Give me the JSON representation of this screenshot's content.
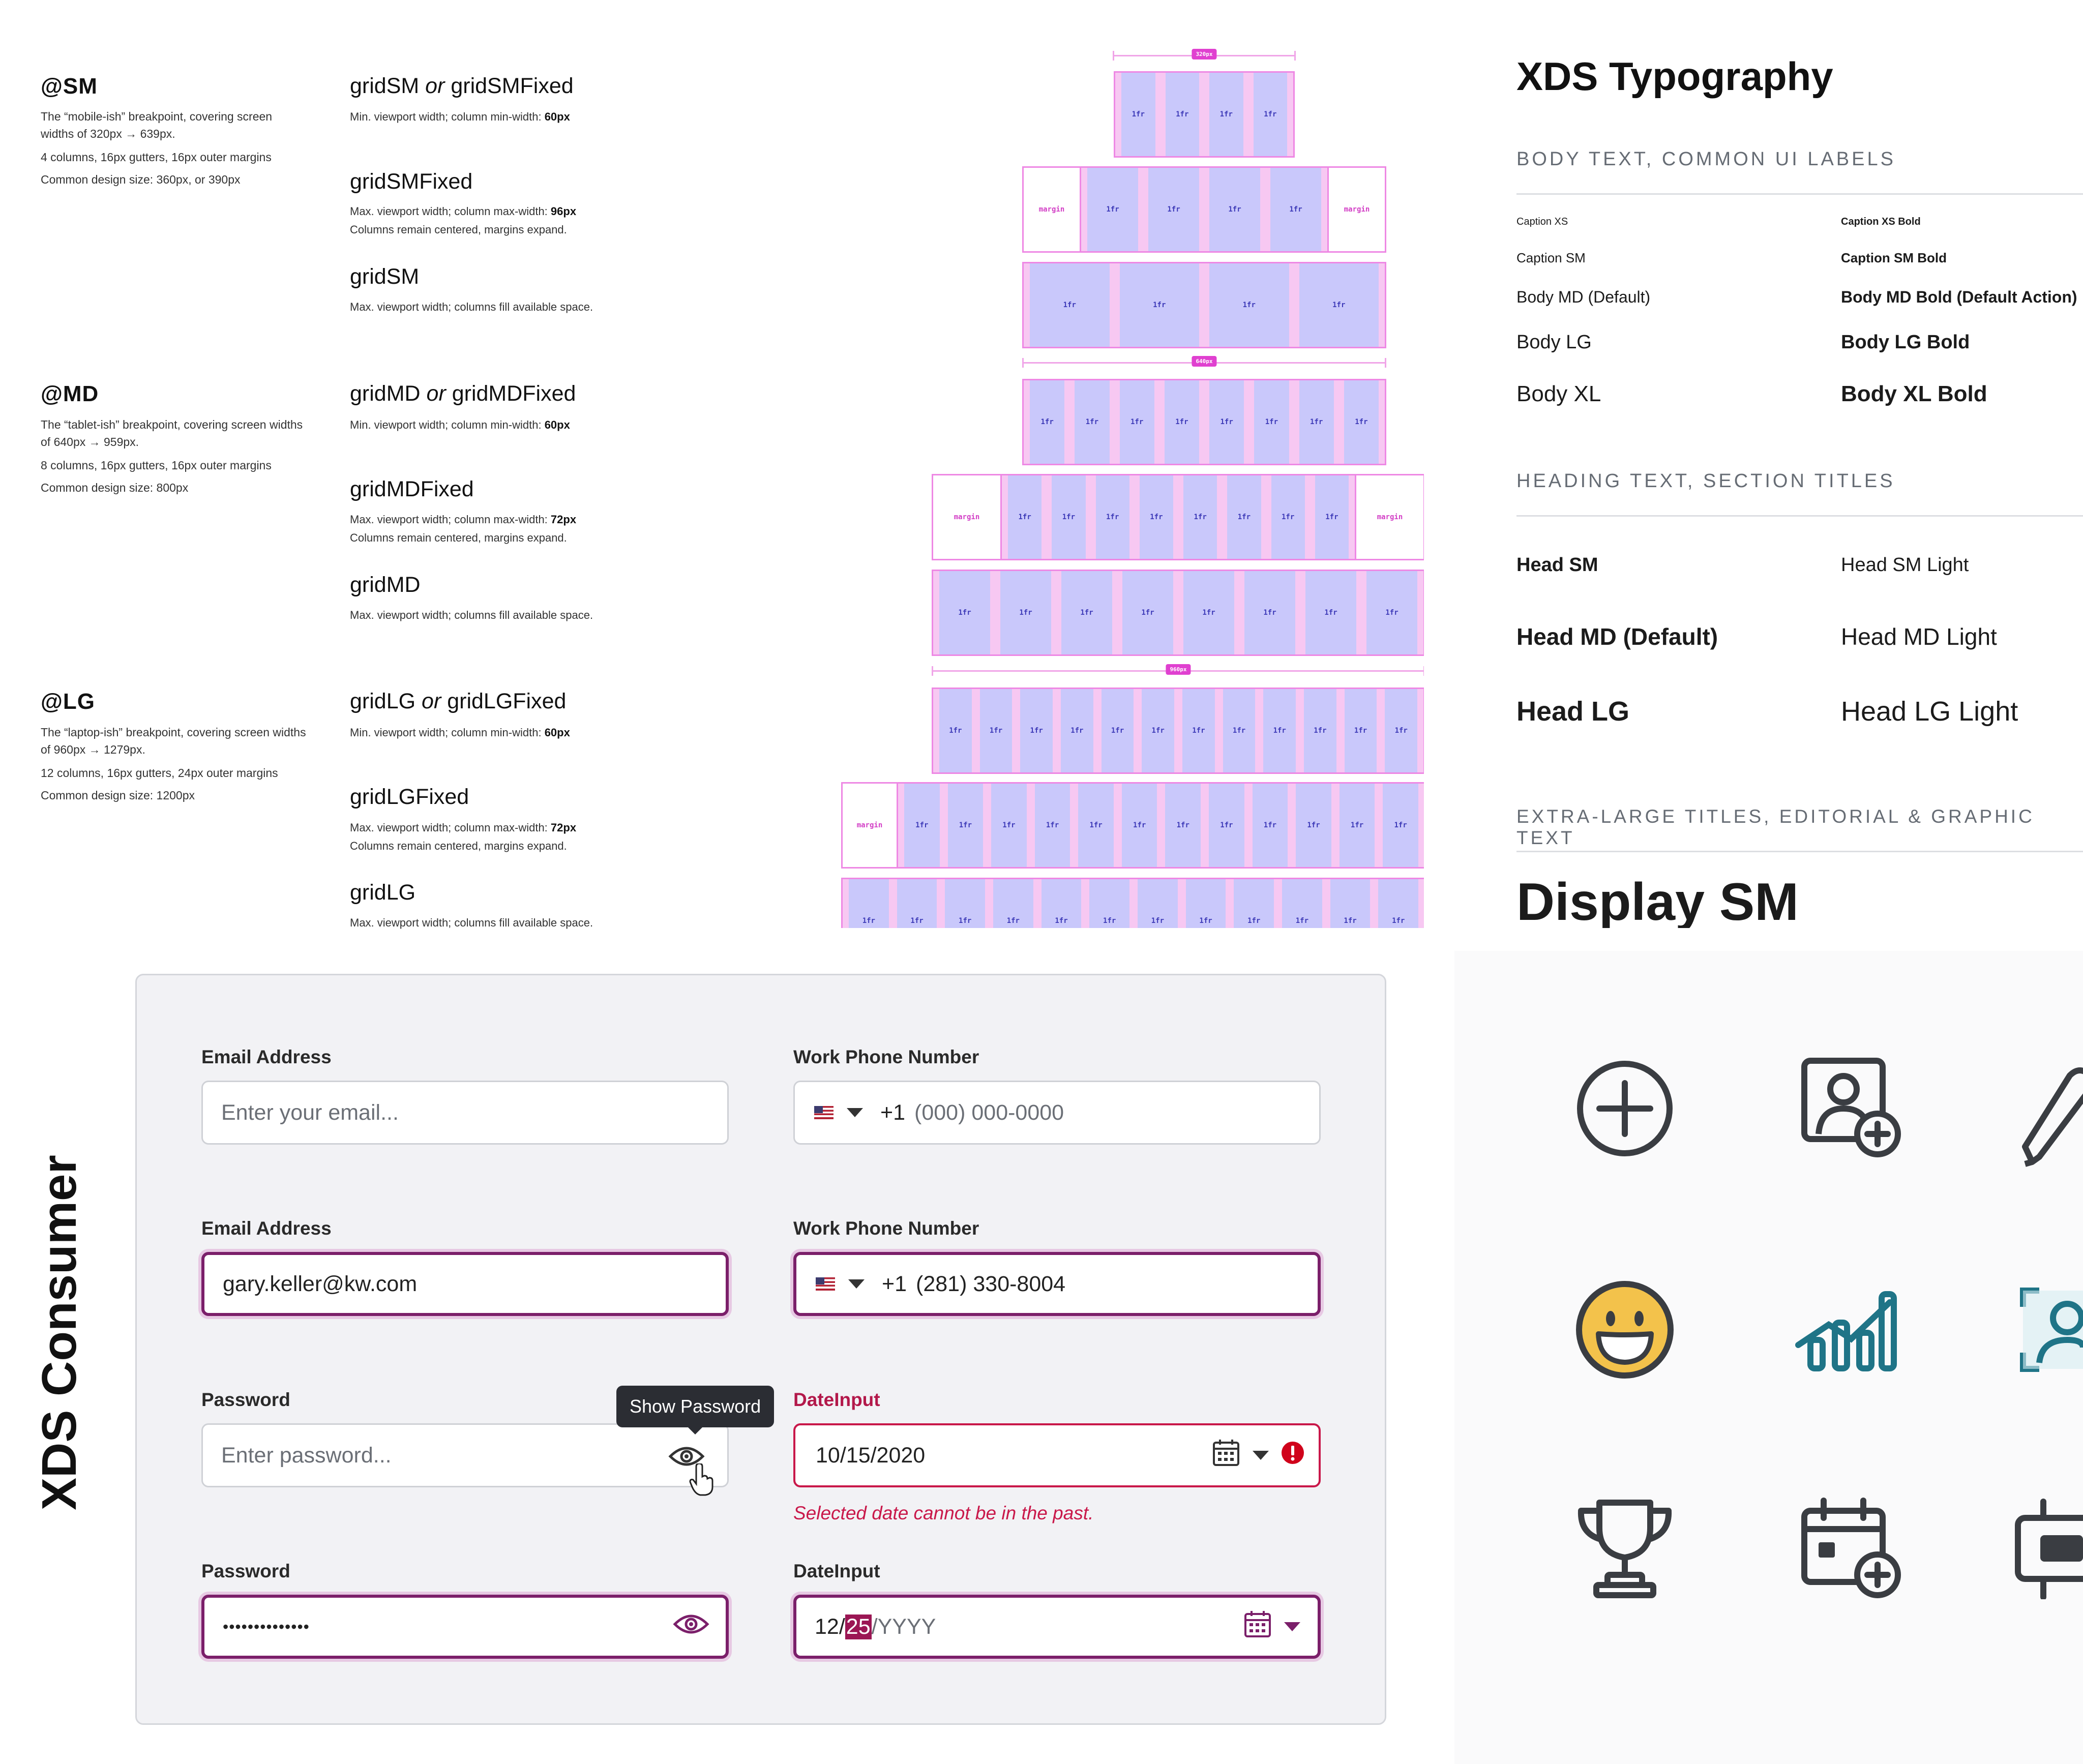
{
  "grid_spec": {
    "breakpoints": [
      {
        "title": "@SM",
        "lines": [
          "The “mobile-ish” breakpoint, covering screen",
          "widths of 320px → 639px.",
          "4 columns, 16px gutters, 16px outer margins",
          "Common design size: 360px, or 390px"
        ],
        "grids": [
          {
            "name": "gridSM",
            "or": "or",
            "alt": "gridSMFixed",
            "desc": [
              "Min. viewport width; column min-width: ",
              "60px"
            ],
            "desc2": ""
          },
          {
            "name": "gridSMFixed",
            "desc": [
              "Max. viewport width; column max-width: ",
              "96px"
            ],
            "desc2": "Columns remain centered, margins expand."
          },
          {
            "name": "gridSM",
            "desc": [
              "Max. viewport width; columns fill available space.",
              ""
            ],
            "desc2": ""
          }
        ]
      },
      {
        "title": "@MD",
        "lines": [
          "The “tablet-ish” breakpoint, covering screen widths",
          "of 640px → 959px.",
          "8 columns, 16px gutters, 16px outer margins",
          "Common design size: 800px"
        ],
        "grids": [
          {
            "name": "gridMD",
            "or": "or",
            "alt": "gridMDFixed",
            "desc": [
              "Min. viewport width; column min-width: ",
              "60px"
            ],
            "desc2": ""
          },
          {
            "name": "gridMDFixed",
            "desc": [
              "Max. viewport width; column max-width: ",
              "72px"
            ],
            "desc2": "Columns remain centered, margins expand."
          },
          {
            "name": "gridMD",
            "desc": [
              "Max. viewport width; columns fill available space.",
              ""
            ],
            "desc2": ""
          }
        ]
      },
      {
        "title": "@LG",
        "lines": [
          "The “laptop-ish” breakpoint, covering screen widths",
          "of 960px → 1279px.",
          "12 columns, 16px gutters, 24px outer margins",
          "Common design size: 1200px"
        ],
        "grids": [
          {
            "name": "gridLG",
            "or": "or",
            "alt": "gridLGFixed",
            "desc": [
              "Min. viewport width; column min-width: ",
              "60px"
            ],
            "desc2": ""
          },
          {
            "name": "gridLGFixed",
            "desc": [
              "Max. viewport width; column max-width: ",
              "72px"
            ],
            "desc2": "Columns remain centered, margins expand."
          },
          {
            "name": "gridLG",
            "desc": [
              "Max. viewport width; columns fill available space.",
              ""
            ],
            "desc2": ""
          }
        ]
      }
    ],
    "col_label": "1fr",
    "margin_label": "margin",
    "measure_labels": [
      "320px",
      "640px",
      "960px"
    ]
  },
  "typography": {
    "title": "XDS Typography",
    "section_body": "BODY TEXT, COMMON UI LABELS",
    "body_rows": [
      [
        "Caption XS",
        "Caption XS Bold"
      ],
      [
        "Caption SM",
        "Caption SM Bold"
      ],
      [
        "Body MD (Default)",
        "Body MD Bold (Default Action)"
      ],
      [
        "Body LG",
        "Body LG Bold"
      ],
      [
        "Body XL",
        "Body XL Bold"
      ]
    ],
    "section_heading": "HEADING TEXT, SECTION TITLES",
    "heading_rows": [
      [
        "Head SM",
        "Head SM Light"
      ],
      [
        "Head MD (Default)",
        "Head MD Light"
      ],
      [
        "Head LG",
        "Head LG Light"
      ]
    ],
    "section_display": "EXTRA-LARGE TITLES, EDITORIAL & GRAPHIC TEXT",
    "display_sample": "Display SM"
  },
  "consumer": {
    "title": "XDS Consumer",
    "email_label": "Email Address",
    "email_placeholder": "Enter your email...",
    "email_value": "gary.keller@kw.com",
    "phone_label": "Work Phone Number",
    "phone_prefix": "+1",
    "phone_placeholder": "(000) 000-0000",
    "phone_value": "(281) 330-8004",
    "password_label": "Password",
    "password_placeholder": "Enter password...",
    "password_value": "••••••••••••••",
    "tooltip": "Show Password",
    "date_label": "DateInput",
    "date_value": "10/15/2020",
    "date_error": "Selected date cannot be in the past.",
    "date_month": "12",
    "date_sep": "/",
    "date_day": "25",
    "date_year": "YYYY"
  },
  "icons": [
    "plus-circle-icon",
    "add-contact-icon",
    "pen-icon",
    "smiley-icon",
    "bar-chart-icon",
    "contact-card-icon",
    "trophy-icon",
    "calendar-add-icon",
    "video-icon"
  ],
  "colors": {
    "accent": "#7b1f6a",
    "error": "#c9184a",
    "teal": "#1f7487",
    "grid_col": "#c9c8fb",
    "grid_gutter": "#f7c8f2"
  }
}
